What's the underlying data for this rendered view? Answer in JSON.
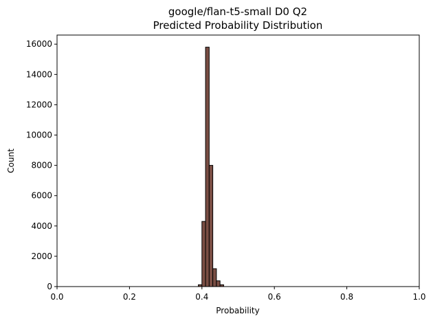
{
  "chart_data": {
    "type": "bar",
    "title_line1": "google/flan-t5-small D0 Q2",
    "title_line2": "Predicted Probability Distribution",
    "xlabel": "Probability",
    "ylabel": "Count",
    "xlim": [
      0,
      1
    ],
    "ylim": [
      0,
      16600
    ],
    "x_ticks": [
      "0.0",
      "0.2",
      "0.4",
      "0.6",
      "0.8",
      "1.0"
    ],
    "y_ticks": [
      "0",
      "2000",
      "4000",
      "6000",
      "8000",
      "10000",
      "12000",
      "14000",
      "16000"
    ],
    "bin_width": 0.01,
    "bins": [
      {
        "start": 0.39,
        "count": 120
      },
      {
        "start": 0.4,
        "count": 4300
      },
      {
        "start": 0.41,
        "count": 15800
      },
      {
        "start": 0.42,
        "count": 8000
      },
      {
        "start": 0.43,
        "count": 1180
      },
      {
        "start": 0.44,
        "count": 380
      },
      {
        "start": 0.45,
        "count": 120
      }
    ],
    "bar_color": "#7a4e44",
    "edge_color": "#000000",
    "grid": false,
    "legend": "none"
  }
}
